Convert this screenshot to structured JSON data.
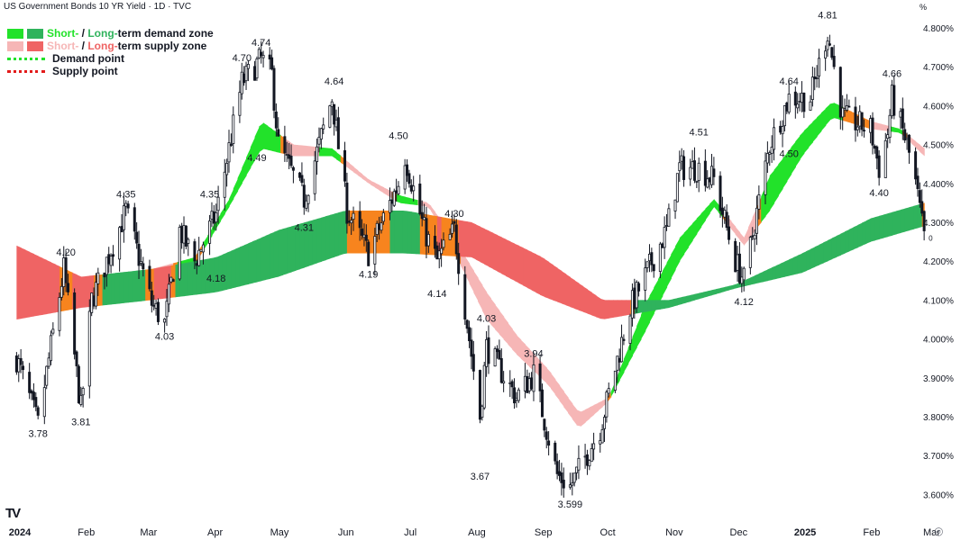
{
  "header": {
    "title": "US Government Bonds 10 YR Yield · 1D · TVC",
    "unit": "%"
  },
  "legend": {
    "demand_short": "Short-",
    "demand_sep": " / ",
    "demand_long": "Long-",
    "demand_rest": "term demand zone",
    "supply_short": "Short-",
    "supply_sep": " / ",
    "supply_long": "Long-",
    "supply_rest": "term supply zone",
    "demand_point": "Demand point",
    "supply_point": "Supply point"
  },
  "colors": {
    "short_demand": "#22e22a",
    "long_demand": "#2fb35c",
    "short_supply": "#f6b6b6",
    "long_supply": "#ef6464",
    "neutral_zone": "#f7841e",
    "candle": "#131722",
    "demand_point": "#22e22a",
    "supply_point": "#e31b1b"
  },
  "chart_data": {
    "type": "candlestick",
    "ylim": [
      3.58,
      4.83
    ],
    "y_ticks": [
      "4.800%",
      "4.700%",
      "4.600%",
      "4.500%",
      "4.400%",
      "4.300%",
      "4.200%",
      "4.100%",
      "4.000%",
      "3.900%",
      "3.800%",
      "3.700%",
      "3.600%"
    ],
    "x_ticks": [
      "2024",
      "Feb",
      "Mar",
      "Apr",
      "May",
      "Jun",
      "Jul",
      "Aug",
      "Sep",
      "Oct",
      "Nov",
      "Dec",
      "2025",
      "Feb",
      "Mar"
    ],
    "price_path": [
      [
        "2024-01-02",
        3.95
      ],
      [
        "2024-01-12",
        3.78
      ],
      [
        "2024-01-24",
        4.18
      ],
      [
        "2024-02-01",
        3.82
      ],
      [
        "2024-02-06",
        4.1
      ],
      [
        "2024-02-22",
        4.33
      ],
      [
        "2024-03-05",
        4.09
      ],
      [
        "2024-03-11",
        4.04
      ],
      [
        "2024-03-18",
        4.28
      ],
      [
        "2024-03-25",
        4.2
      ],
      [
        "2024-04-04",
        4.32
      ],
      [
        "2024-04-16",
        4.66
      ],
      [
        "2024-04-25",
        4.72
      ],
      [
        "2024-04-30",
        4.68
      ],
      [
        "2024-05-03",
        4.5
      ],
      [
        "2024-05-15",
        4.36
      ],
      [
        "2024-05-28",
        4.62
      ],
      [
        "2024-06-04",
        4.33
      ],
      [
        "2024-06-14",
        4.22
      ],
      [
        "2024-06-28",
        4.4
      ],
      [
        "2024-07-01",
        4.47
      ],
      [
        "2024-07-10",
        4.28
      ],
      [
        "2024-07-16",
        4.2
      ],
      [
        "2024-07-24",
        4.28
      ],
      [
        "2024-08-05",
        3.8
      ],
      [
        "2024-08-08",
        3.98
      ],
      [
        "2024-08-22",
        3.85
      ],
      [
        "2024-08-30",
        3.91
      ],
      [
        "2024-09-10",
        3.65
      ],
      [
        "2024-09-16",
        3.62
      ],
      [
        "2024-09-30",
        3.77
      ],
      [
        "2024-10-14",
        4.08
      ],
      [
        "2024-10-31",
        4.28
      ],
      [
        "2024-11-06",
        4.44
      ],
      [
        "2024-11-15",
        4.44
      ],
      [
        "2024-11-22",
        4.41
      ],
      [
        "2024-12-02",
        4.2
      ],
      [
        "2024-12-06",
        4.15
      ],
      [
        "2024-12-18",
        4.5
      ],
      [
        "2024-12-27",
        4.62
      ],
      [
        "2025-01-06",
        4.62
      ],
      [
        "2025-01-14",
        4.79
      ],
      [
        "2025-01-21",
        4.57
      ],
      [
        "2025-02-03",
        4.54
      ],
      [
        "2025-02-07",
        4.44
      ],
      [
        "2025-02-11",
        4.53
      ],
      [
        "2025-02-13",
        4.62
      ],
      [
        "2025-02-20",
        4.5
      ],
      [
        "2025-02-24",
        4.4
      ],
      [
        "2025-02-28",
        4.26
      ]
    ],
    "bands": [
      {
        "name": "Short-term zone",
        "points": [
          [
            "2024-03-05",
            4.16,
            4.18
          ],
          [
            "2024-03-25",
            4.19,
            4.21
          ],
          [
            "2024-04-10",
            4.34,
            4.36
          ],
          [
            "2024-04-25",
            4.49,
            4.56
          ],
          [
            "2024-05-10",
            4.47,
            4.5
          ],
          [
            "2024-05-28",
            4.47,
            4.49
          ],
          [
            "2024-06-14",
            4.4,
            4.41
          ],
          [
            "2024-06-28",
            4.35,
            4.37
          ],
          [
            "2024-07-12",
            4.34,
            4.35
          ],
          [
            "2024-07-26",
            4.2,
            4.24
          ],
          [
            "2024-08-08",
            4.05,
            4.12
          ],
          [
            "2024-08-22",
            3.96,
            4.01
          ],
          [
            "2024-09-06",
            3.88,
            3.92
          ],
          [
            "2024-09-20",
            3.77,
            3.81
          ],
          [
            "2024-10-04",
            3.84,
            3.85
          ],
          [
            "2024-10-21",
            4.02,
            4.09
          ],
          [
            "2024-11-06",
            4.2,
            4.26
          ],
          [
            "2024-11-22",
            4.34,
            4.36
          ],
          [
            "2024-12-06",
            4.24,
            4.26
          ],
          [
            "2024-12-18",
            4.33,
            4.42
          ],
          [
            "2025-01-02",
            4.47,
            4.53
          ],
          [
            "2025-01-16",
            4.57,
            4.61
          ],
          [
            "2025-02-03",
            4.54,
            4.56
          ],
          [
            "2025-02-17",
            4.53,
            4.54
          ],
          [
            "2025-02-28",
            4.47,
            4.49
          ]
        ]
      },
      {
        "name": "Long-term zone",
        "points": [
          [
            "2024-01-02",
            4.05,
            4.24
          ],
          [
            "2024-02-01",
            4.08,
            4.16
          ],
          [
            "2024-03-05",
            4.1,
            4.18
          ],
          [
            "2024-04-04",
            4.12,
            4.21
          ],
          [
            "2024-05-03",
            4.16,
            4.28
          ],
          [
            "2024-06-03",
            4.22,
            4.33
          ],
          [
            "2024-07-01",
            4.22,
            4.33
          ],
          [
            "2024-08-01",
            4.21,
            4.3
          ],
          [
            "2024-09-03",
            4.11,
            4.21
          ],
          [
            "2024-10-01",
            4.05,
            4.1
          ],
          [
            "2024-11-01",
            4.08,
            4.1
          ],
          [
            "2024-12-02",
            4.13,
            4.14
          ],
          [
            "2025-01-02",
            4.17,
            4.22
          ],
          [
            "2025-02-03",
            4.25,
            4.31
          ],
          [
            "2025-02-28",
            4.29,
            4.35
          ]
        ]
      }
    ],
    "annotations": [
      {
        "label": "3.78",
        "date": "2024-01-12",
        "value": 3.78,
        "pos": "below"
      },
      {
        "label": "4.20",
        "date": "2024-01-25",
        "value": 4.2,
        "pos": "above"
      },
      {
        "label": "3.81",
        "date": "2024-02-01",
        "value": 3.81,
        "pos": "below"
      },
      {
        "label": "4.35",
        "date": "2024-02-22",
        "value": 4.35,
        "pos": "above"
      },
      {
        "label": "4.03",
        "date": "2024-03-11",
        "value": 4.03,
        "pos": "below"
      },
      {
        "label": "4.35",
        "date": "2024-04-01",
        "value": 4.35,
        "pos": "above"
      },
      {
        "label": "4.18",
        "date": "2024-04-04",
        "value": 4.18,
        "pos": "below"
      },
      {
        "label": "4.70",
        "date": "2024-04-16",
        "value": 4.7,
        "pos": "above"
      },
      {
        "label": "4.74",
        "date": "2024-04-25",
        "value": 4.74,
        "pos": "above"
      },
      {
        "label": "4.49",
        "date": "2024-04-23",
        "value": 4.49,
        "pos": "below"
      },
      {
        "label": "4.64",
        "date": "2024-05-29",
        "value": 4.64,
        "pos": "above"
      },
      {
        "label": "4.31",
        "date": "2024-05-15",
        "value": 4.31,
        "pos": "below"
      },
      {
        "label": "4.50",
        "date": "2024-06-28",
        "value": 4.5,
        "pos": "above"
      },
      {
        "label": "4.19",
        "date": "2024-06-14",
        "value": 4.19,
        "pos": "below"
      },
      {
        "label": "4.30",
        "date": "2024-07-24",
        "value": 4.3,
        "pos": "above"
      },
      {
        "label": "4.14",
        "date": "2024-07-16",
        "value": 4.14,
        "pos": "below"
      },
      {
        "label": "4.03",
        "date": "2024-08-08",
        "value": 4.03,
        "pos": "above"
      },
      {
        "label": "3.67",
        "date": "2024-08-05",
        "value": 3.67,
        "pos": "below"
      },
      {
        "label": "3.94",
        "date": "2024-08-30",
        "value": 3.94,
        "pos": "above"
      },
      {
        "label": "3.599",
        "date": "2024-09-16",
        "value": 3.599,
        "pos": "below"
      },
      {
        "label": "4.51",
        "date": "2024-11-15",
        "value": 4.51,
        "pos": "above"
      },
      {
        "label": "4.12",
        "date": "2024-12-06",
        "value": 4.12,
        "pos": "below"
      },
      {
        "label": "4.64",
        "date": "2024-12-27",
        "value": 4.64,
        "pos": "above"
      },
      {
        "label": "4.50",
        "date": "2024-12-27",
        "value": 4.5,
        "pos": "below"
      },
      {
        "label": "4.81",
        "date": "2025-01-14",
        "value": 4.81,
        "pos": "above"
      },
      {
        "label": "4.66",
        "date": "2025-02-13",
        "value": 4.66,
        "pos": "above"
      },
      {
        "label": "4.40",
        "date": "2025-02-07",
        "value": 4.4,
        "pos": "below"
      }
    ],
    "last_label": "0"
  }
}
